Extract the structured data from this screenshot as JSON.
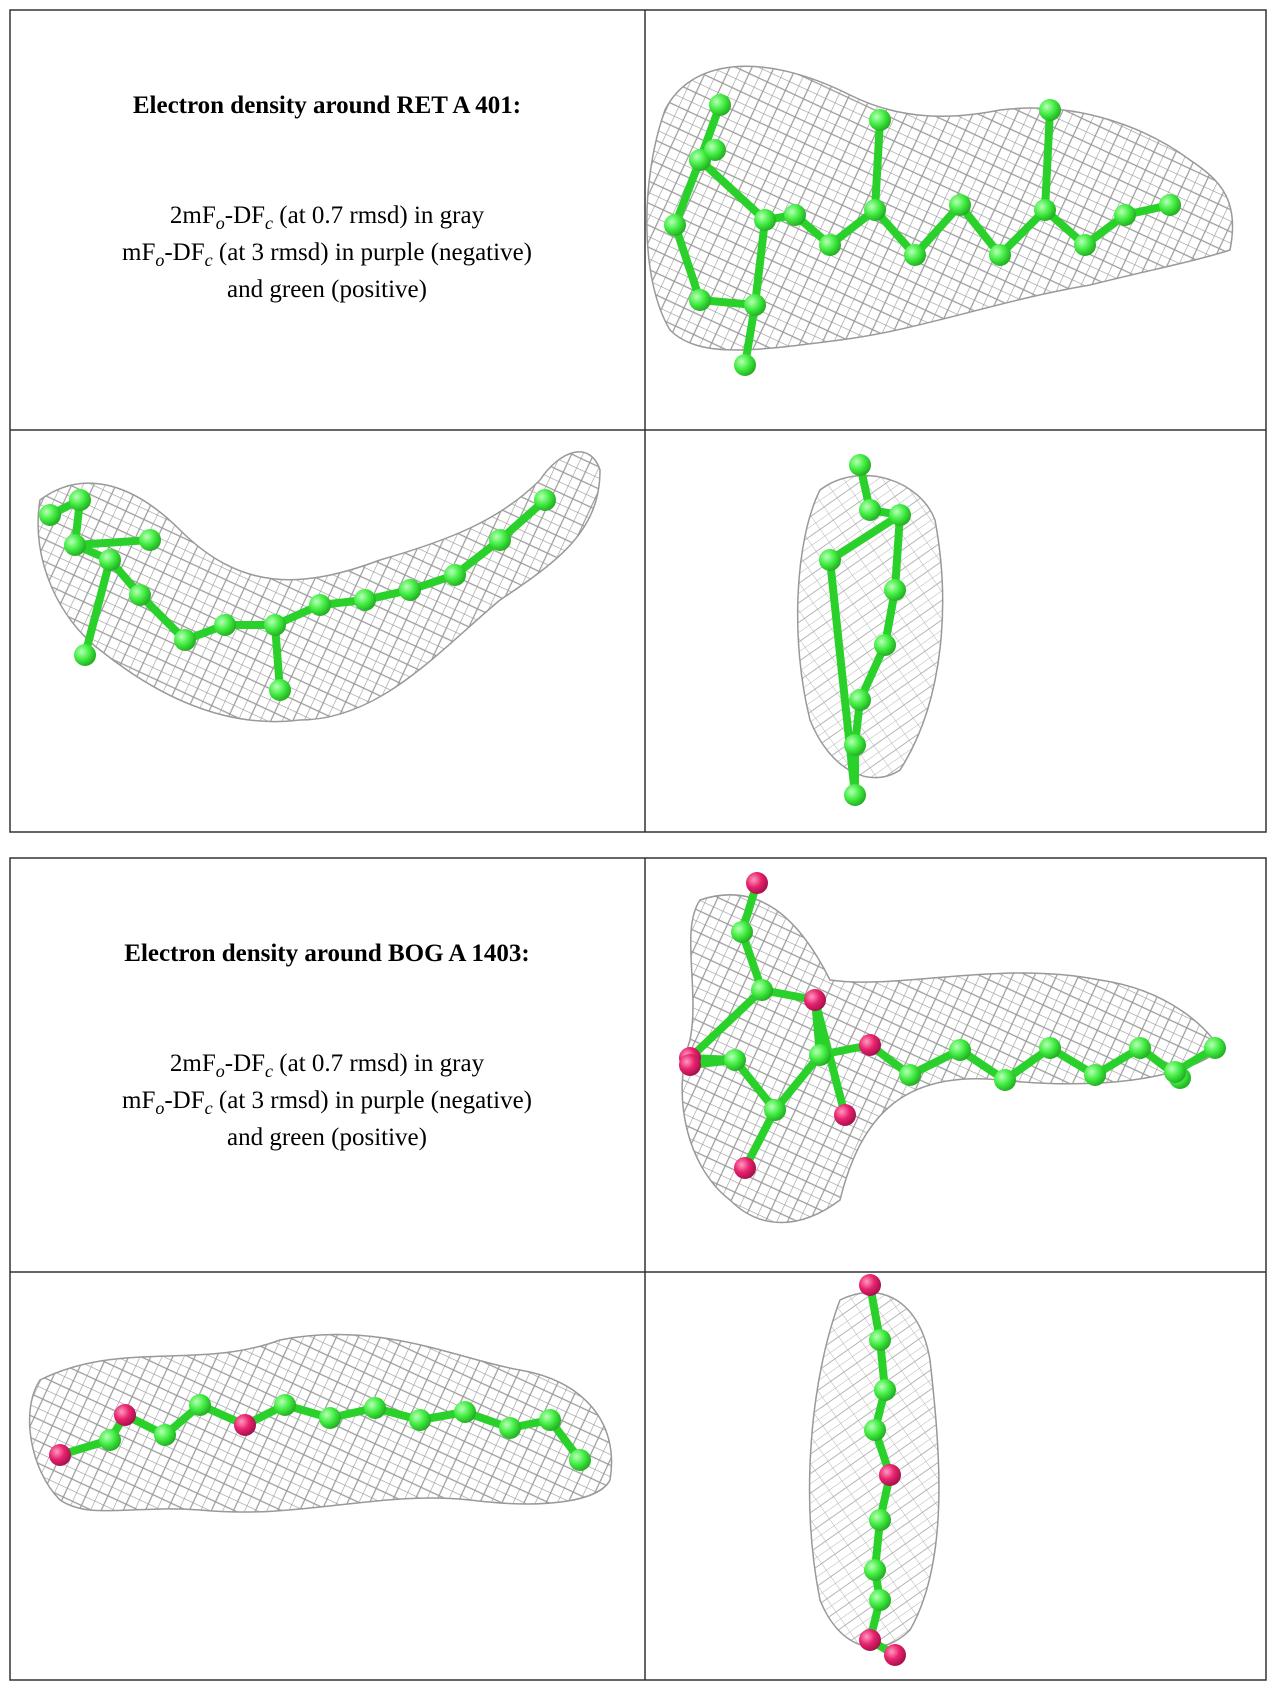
{
  "panels": [
    {
      "heading": "Electron density around RET A 401:",
      "lines": [
        [
          "2mF",
          "o",
          "-DF",
          "c",
          " (at 0.7 rmsd) in gray"
        ],
        [
          "mF",
          "o",
          "-DF",
          "c",
          " (at 3 rmsd) in purple (negative)"
        ],
        [
          "and green (positive)"
        ]
      ]
    },
    {
      "heading": "Electron density around BOG A 1403:",
      "lines": [
        [
          "2mF",
          "o",
          "-DF",
          "c",
          " (at 0.7 rmsd) in gray"
        ],
        [
          "mF",
          "o",
          "-DF",
          "c",
          " (at 3 rmsd) in purple (negative)"
        ],
        [
          "and green (positive)"
        ]
      ]
    }
  ]
}
